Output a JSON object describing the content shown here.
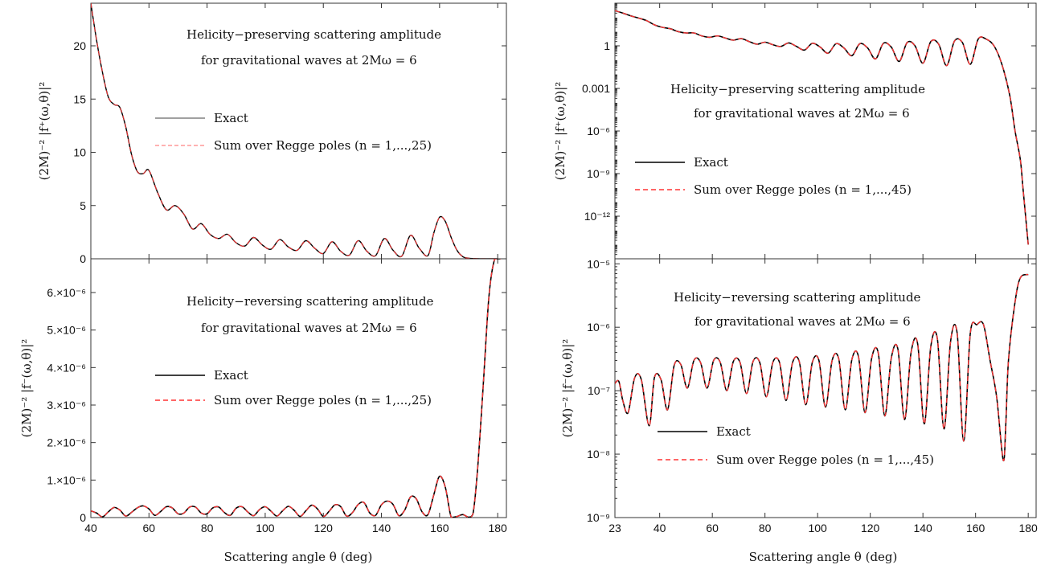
{
  "chart_data": [
    {
      "type": "line",
      "panel": "left-top",
      "ylabel": "(2M)⁻² |f⁺(ω,θ)|²",
      "ylim": [
        0,
        24
      ],
      "yscale": "linear",
      "yticks": [
        0,
        5,
        10,
        15,
        20
      ],
      "ytick_labels": [
        "0",
        "5",
        "10",
        "15",
        "20"
      ],
      "xlim": [
        40,
        183
      ],
      "annotation": [
        "Helicity−preserving scattering amplitude",
        "for gravitational waves at 2Mω = 6"
      ],
      "legend": [
        "Exact",
        "Sum over Regge poles (n = 1,...,25)"
      ],
      "x": [
        40,
        42,
        44,
        46,
        48,
        50,
        52,
        54,
        56,
        58,
        60,
        63,
        66,
        69,
        72,
        75,
        78,
        81,
        84,
        87,
        90,
        93,
        96,
        99,
        102,
        105,
        108,
        111,
        114,
        117,
        120,
        123,
        126,
        129,
        132,
        135,
        138,
        141,
        144,
        147,
        150,
        153,
        156,
        158,
        160,
        162,
        164,
        166,
        168,
        170,
        172,
        174,
        176,
        178,
        180
      ],
      "values": [
        25,
        20.5,
        17.5,
        15.2,
        14.5,
        14.2,
        12.4,
        9.8,
        8.2,
        8.0,
        8.3,
        6.2,
        4.6,
        5.0,
        4.2,
        2.8,
        3.3,
        2.3,
        1.9,
        2.3,
        1.5,
        1.2,
        2.0,
        1.3,
        0.9,
        1.8,
        1.1,
        0.8,
        1.7,
        1.0,
        0.5,
        1.6,
        0.7,
        0.35,
        1.7,
        0.7,
        0.3,
        1.9,
        0.8,
        0.25,
        2.2,
        1.0,
        0.3,
        2.4,
        3.9,
        3.5,
        2.0,
        0.8,
        0.2,
        0.05,
        0.02,
        0.01,
        0.01,
        0.01,
        0.01
      ],
      "series": [
        {
          "name": "Exact",
          "color": "#000000"
        },
        {
          "name": "Sum over Regge poles (n = 1,...,25)",
          "color": "#ff3333"
        }
      ]
    },
    {
      "type": "line",
      "panel": "left-bottom",
      "xlabel": "Scattering angle θ (deg)",
      "ylabel": "(2M)⁻² |f⁻(ω,θ)|²",
      "ylim": [
        0,
        6.9e-06
      ],
      "yscale": "linear",
      "yticks": [
        0,
        1e-06,
        2e-06,
        3e-06,
        4e-06,
        5e-06,
        6e-06
      ],
      "ytick_labels": [
        "0",
        "1.×10⁻⁶",
        "2.×10⁻⁶",
        "3.×10⁻⁶",
        "4.×10⁻⁶",
        "5.×10⁻⁶",
        "6.×10⁻⁶"
      ],
      "xlim": [
        40,
        183
      ],
      "xticks": [
        40,
        60,
        80,
        100,
        120,
        140,
        160,
        180
      ],
      "xtick_labels": [
        "40",
        "60",
        "80",
        "100",
        "120",
        "140",
        "160",
        "180"
      ],
      "annotation": [
        "Helicity−reversing scattering amplitude",
        "for gravitational waves at 2Mω = 6"
      ],
      "legend": [
        "Exact",
        "Sum over Regge poles (n = 1,...,25)"
      ],
      "x": [
        40,
        42,
        44,
        46,
        48,
        50,
        52,
        54,
        56,
        58,
        60,
        62,
        64,
        66,
        68,
        70,
        72,
        74,
        76,
        78,
        80,
        82,
        84,
        86,
        88,
        90,
        92,
        94,
        96,
        98,
        100,
        102,
        104,
        106,
        108,
        110,
        112,
        114,
        116,
        118,
        120,
        122,
        124,
        126,
        128,
        130,
        132,
        134,
        136,
        138,
        140,
        142,
        144,
        146,
        148,
        150,
        152,
        154,
        156,
        158,
        160,
        162,
        164,
        166,
        168,
        170,
        171.5,
        173,
        175,
        177,
        179,
        181
      ],
      "values": [
        1.8e-07,
        1.2e-07,
        2e-08,
        1.5e-07,
        2.7e-07,
        2e-07,
        4e-08,
        1.4e-07,
        2.6e-07,
        3.1e-07,
        2.3e-07,
        6e-08,
        1.6e-07,
        2.9e-07,
        2.6e-07,
        1e-07,
        1.2e-07,
        2.8e-07,
        2.8e-07,
        1.2e-07,
        1e-07,
        2.6e-07,
        2.8e-07,
        1.3e-07,
        6e-08,
        2.5e-07,
        2.9e-07,
        1.5e-07,
        5e-08,
        2.1e-07,
        2.9e-07,
        1.7e-07,
        4e-08,
        1.8e-07,
        3e-07,
        1.9e-07,
        3e-08,
        1.8e-07,
        3.3e-07,
        2.3e-07,
        3e-08,
        1.7e-07,
        3.4e-07,
        2.9e-07,
        4e-08,
        1.3e-07,
        3.5e-07,
        4e-07,
        1.2e-07,
        6e-08,
        3.4e-07,
        4.4e-07,
        3.5e-07,
        5e-08,
        2e-07,
        5.5e-07,
        5e-07,
        1.5e-07,
        8e-08,
        6e-07,
        1.1e-06,
        8e-07,
        1e-08,
        3e-08,
        8e-08,
        1e-08,
        1e-07,
        1.2e-06,
        3.5e-06,
        5.9e-06,
        6.9e-06,
        6.9e-06
      ],
      "series": [
        {
          "name": "Exact",
          "color": "#000000"
        },
        {
          "name": "Sum over Regge poles (n = 1,...,25)",
          "color": "#ff3333"
        }
      ]
    },
    {
      "type": "line",
      "panel": "right-top",
      "ylabel": "(2M)⁻² |f⁺(ω,θ)|²",
      "yscale": "log",
      "ylim": [
        1e-15,
        1000
      ],
      "yticks": [
        1e-12,
        1e-09,
        1e-06,
        0.001,
        1
      ],
      "ytick_labels": [
        "10⁻¹²",
        "10⁻⁹",
        "10⁻⁶",
        "0.001",
        "1"
      ],
      "xlim": [
        23,
        183
      ],
      "annotation": [
        "Helicity−preserving scattering amplitude",
        "for gravitational waves at 2Mω = 6"
      ],
      "legend": [
        "Exact",
        "Sum over Regge poles (n = 1,...,45)"
      ],
      "x": [
        23,
        26,
        29,
        32,
        35,
        38,
        41,
        44,
        47,
        50,
        53,
        56,
        59,
        62,
        65,
        68,
        71,
        74,
        77,
        80,
        83,
        86,
        89,
        92,
        95,
        98,
        101,
        104,
        107,
        110,
        113,
        116,
        119,
        122,
        125,
        128,
        131,
        134,
        137,
        140,
        143,
        146,
        149,
        152,
        155,
        158,
        161,
        164,
        167,
        170,
        173,
        175,
        177,
        178,
        179,
        180
      ],
      "values": [
        300,
        200,
        130,
        90,
        60,
        30,
        20,
        16,
        10,
        8,
        8,
        5,
        4,
        5,
        3.5,
        2.5,
        3.2,
        2.0,
        1.3,
        1.8,
        1.2,
        0.9,
        1.6,
        0.9,
        0.5,
        1.5,
        0.8,
        0.3,
        1.4,
        0.7,
        0.2,
        1.4,
        0.7,
        0.12,
        1.5,
        0.8,
        0.08,
        1.7,
        1.0,
        0.06,
        2.0,
        1.3,
        0.04,
        2.2,
        1.7,
        0.05,
        3.0,
        3.0,
        1.0,
        0.05,
        0.0003,
        1e-06,
        1e-08,
        1e-10,
        1e-12,
        1e-14
      ],
      "series": [
        {
          "name": "Exact",
          "color": "#000000"
        },
        {
          "name": "Sum over Regge poles (n = 1,...,45)",
          "color": "#ff3333"
        }
      ]
    },
    {
      "type": "line",
      "panel": "right-bottom",
      "xlabel": "Scattering angle θ (deg)",
      "ylabel": "(2M)⁻² |f⁻(ω,θ)|²",
      "yscale": "log",
      "ylim": [
        1e-09,
        1.2e-05
      ],
      "yticks": [
        1e-09,
        1e-08,
        1e-07,
        1e-06,
        1e-05
      ],
      "ytick_labels": [
        "10⁻⁹",
        "10⁻⁸",
        "10⁻⁷",
        "10⁻⁶",
        "10⁻⁵"
      ],
      "xlim": [
        23,
        183
      ],
      "xticks": [
        23,
        40,
        60,
        80,
        100,
        120,
        140,
        160,
        180
      ],
      "xtick_labels": [
        "23",
        "40",
        "60",
        "80",
        "100",
        "120",
        "140",
        "160",
        "180"
      ],
      "annotation": [
        "Helicity−reversing scattering amplitude",
        "for gravitational waves at 2Mω = 6"
      ],
      "legend": [
        "Exact",
        "Sum over Regge poles (n = 1,...,45)"
      ],
      "x": [
        23,
        24.5,
        26,
        28,
        30.5,
        33,
        36,
        38,
        40.5,
        43,
        45.5,
        48,
        50.5,
        53,
        55.5,
        58,
        60.5,
        63,
        65.5,
        68,
        70.5,
        73,
        75.5,
        78,
        80.5,
        83,
        85.5,
        88,
        90.5,
        93,
        95.5,
        98,
        100.5,
        103,
        105.5,
        108,
        110.5,
        113,
        115.5,
        118,
        120.5,
        123,
        125.5,
        128,
        130.5,
        133,
        135.5,
        138,
        140.5,
        143,
        145.5,
        148,
        150.5,
        153,
        155.5,
        158,
        160.5,
        163,
        165.5,
        168,
        170.5,
        171.5,
        172.5,
        175,
        177,
        180
      ],
      "values": [
        1.3e-07,
        1.4e-07,
        7e-08,
        4.5e-08,
        1.6e-07,
        1.5e-07,
        2.8e-08,
        1.6e-07,
        1.5e-07,
        5e-08,
        2.5e-07,
        2.6e-07,
        1.1e-07,
        3e-07,
        2.8e-07,
        1.1e-07,
        3e-07,
        2.8e-07,
        1e-07,
        2.9e-07,
        2.8e-07,
        9e-08,
        2.9e-07,
        2.8e-07,
        8e-08,
        2.8e-07,
        2.8e-07,
        7e-08,
        2.8e-07,
        2.9e-07,
        6e-08,
        2.8e-07,
        3e-07,
        5.5e-08,
        3e-07,
        3.2e-07,
        5e-08,
        3.1e-07,
        3.5e-07,
        4.5e-08,
        3.2e-07,
        4e-07,
        4e-08,
        3.3e-07,
        4.5e-07,
        3.5e-08,
        4e-07,
        5.5e-07,
        3e-08,
        5e-07,
        6.5e-07,
        2.5e-08,
        6e-07,
        8e-07,
        1.6e-08,
        8e-07,
        1.1e-06,
        1.1e-06,
        3e-07,
        8e-08,
        8e-09,
        3e-08,
        3e-07,
        2.5e-06,
        6e-06,
        6.8e-06
      ],
      "series": [
        {
          "name": "Exact",
          "color": "#000000"
        },
        {
          "name": "Sum over Regge poles (n = 1,...,45)",
          "color": "#ff3333"
        }
      ]
    }
  ],
  "panels_text": {
    "lt": {
      "ann1": "Helicity−preserving scattering amplitude",
      "ann2": "for gravitational waves at 2Mω = 6",
      "leg1": "Exact",
      "leg2": "Sum over Regge poles (n = 1,...,25)",
      "ylabel": "(2M)⁻² |f⁺(ω,θ)|²"
    },
    "lb": {
      "ann1": "Helicity−reversing scattering amplitude",
      "ann2": "for gravitational waves at 2Mω = 6",
      "leg1": "Exact",
      "leg2": "Sum over Regge poles (n = 1,...,25)",
      "ylabel": "(2M)⁻² |f⁻(ω,θ)|²",
      "xlabel": "Scattering angle θ (deg)"
    },
    "rt": {
      "ann1": "Helicity−preserving scattering amplitude",
      "ann2": "for gravitational waves at 2Mω = 6",
      "leg1": "Exact",
      "leg2": "Sum over Regge poles (n = 1,...,45)",
      "ylabel": "(2M)⁻² |f⁺(ω,θ)|²"
    },
    "rb": {
      "ann1": "Helicity−reversing scattering amplitude",
      "ann2": "for gravitational waves at 2Mω = 6",
      "leg1": "Exact",
      "leg2": "Sum over Regge poles (n = 1,...,45)",
      "ylabel": "(2M)⁻² |f⁻(ω,θ)|²",
      "xlabel": "Scattering angle θ (deg)"
    }
  }
}
